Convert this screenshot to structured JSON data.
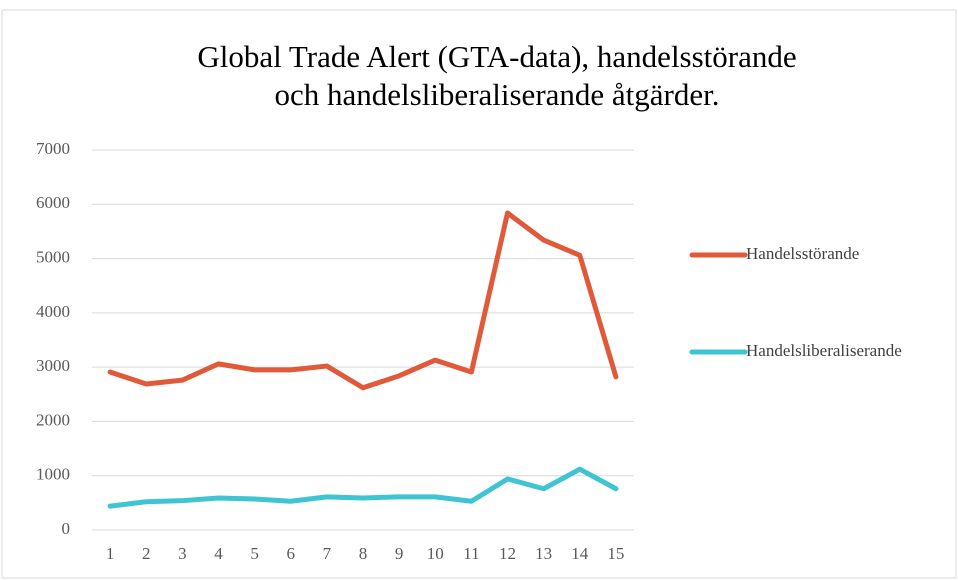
{
  "chart_data": {
    "type": "line",
    "title": [
      "Global Trade Alert (GTA-data), handelsstörande",
      "och handelsliberaliserande åtgärder."
    ],
    "categories": [
      "1",
      "2",
      "3",
      "4",
      "5",
      "6",
      "7",
      "8",
      "9",
      "10",
      "11",
      "12",
      "13",
      "14",
      "15"
    ],
    "series": [
      {
        "name": "Handelsstörande",
        "color": "#e05a3a",
        "values": [
          2910,
          2690,
          2760,
          3060,
          2950,
          2950,
          3020,
          2620,
          2840,
          3130,
          2910,
          5840,
          5340,
          5060,
          2820
        ]
      },
      {
        "name": "Handelsliberaliserande",
        "color": "#3fc4d2",
        "values": [
          440,
          520,
          540,
          590,
          570,
          530,
          610,
          590,
          610,
          610,
          530,
          940,
          760,
          1120,
          760
        ]
      }
    ],
    "ylim": [
      0,
      7000
    ],
    "yticks": [
      0,
      1000,
      2000,
      3000,
      4000,
      5000,
      6000,
      7000
    ],
    "grid": true,
    "legend": "right"
  }
}
